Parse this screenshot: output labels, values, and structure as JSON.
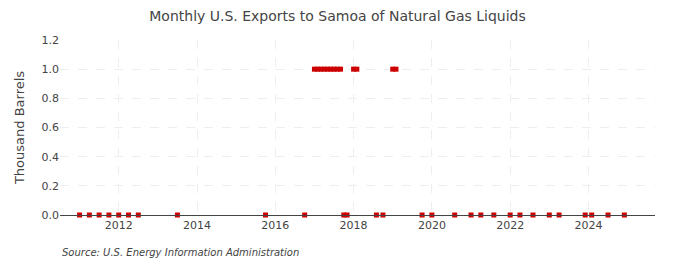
{
  "chart_data": {
    "type": "scatter",
    "title": "Monthly U.S. Exports to Samoa of Natural Gas Liquids",
    "y_label": "Thousand Barrels",
    "annotations": [
      "Source: U.S. Energy Information Administration"
    ],
    "color": "#cc0000",
    "marker": "square",
    "grid": true,
    "xlim": [
      2010.5,
      2025.7
    ],
    "xticks": [
      2012,
      2014,
      2016,
      2018,
      2020,
      2022,
      2024
    ],
    "ylim": [
      0,
      1.2
    ],
    "yticks": [
      {
        "value": 0,
        "label": "0.0"
      },
      0.2,
      0.4,
      0.6,
      0.8,
      {
        "value": 1,
        "label": "1.0"
      },
      1.2
    ],
    "x": [
      2011.0,
      2011.25,
      2011.5,
      2011.75,
      2012.0,
      2012.25,
      2012.5,
      2013.5,
      2015.75,
      2016.75,
      2017.0,
      2017.083,
      2017.167,
      2017.25,
      2017.333,
      2017.417,
      2017.5,
      2017.583,
      2017.667,
      2017.75,
      2017.833,
      2018.0,
      2018.083,
      2018.583,
      2018.75,
      2019.0,
      2019.083,
      2019.75,
      2020.0,
      2020.583,
      2021.0,
      2021.25,
      2021.583,
      2022.0,
      2022.25,
      2022.583,
      2023.0,
      2023.25,
      2023.917,
      2024.083,
      2024.5,
      2024.917
    ],
    "values": [
      0.0,
      0.0,
      0.0,
      0.0,
      0.0,
      0.0,
      0.0,
      0.0,
      0.0,
      0.0,
      1.0,
      1.0,
      1.0,
      1.0,
      1.0,
      1.0,
      1.0,
      1.0,
      1.0,
      0.0,
      0.0,
      1.0,
      1.0,
      0.0,
      0.0,
      1.0,
      1.0,
      0.0,
      0.0,
      0.0,
      0.0,
      0.0,
      0.0,
      0.0,
      0.0,
      0.0,
      0.0,
      0.0,
      0.0,
      0.0,
      0.0,
      0.0
    ]
  }
}
